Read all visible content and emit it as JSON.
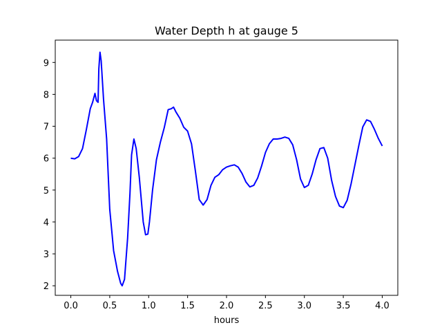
{
  "chart_data": {
    "type": "line",
    "title": "Water Depth h at gauge 5",
    "xlabel": "hours",
    "ylabel": "",
    "xlim": [
      -0.2,
      4.2
    ],
    "ylim": [
      1.7,
      9.7
    ],
    "xticks": [
      0.0,
      0.5,
      1.0,
      1.5,
      2.0,
      2.5,
      3.0,
      3.5,
      4.0
    ],
    "xtick_labels": [
      "0.0",
      "0.5",
      "1.0",
      "1.5",
      "2.0",
      "2.5",
      "3.0",
      "3.5",
      "4.0"
    ],
    "yticks": [
      2,
      3,
      4,
      5,
      6,
      7,
      8,
      9
    ],
    "ytick_labels": [
      "2",
      "3",
      "4",
      "5",
      "6",
      "7",
      "8",
      "9"
    ],
    "grid": false,
    "series": [
      {
        "color": "#0000ff",
        "points": [
          [
            0.0,
            6.0
          ],
          [
            0.05,
            5.98
          ],
          [
            0.1,
            6.05
          ],
          [
            0.15,
            6.3
          ],
          [
            0.2,
            6.9
          ],
          [
            0.25,
            7.55
          ],
          [
            0.28,
            7.75
          ],
          [
            0.31,
            8.03
          ],
          [
            0.33,
            7.8
          ],
          [
            0.35,
            7.75
          ],
          [
            0.36,
            8.8
          ],
          [
            0.375,
            9.32
          ],
          [
            0.39,
            9.05
          ],
          [
            0.42,
            7.85
          ],
          [
            0.46,
            6.6
          ],
          [
            0.5,
            4.4
          ],
          [
            0.55,
            3.1
          ],
          [
            0.6,
            2.45
          ],
          [
            0.64,
            2.08
          ],
          [
            0.66,
            2.0
          ],
          [
            0.69,
            2.2
          ],
          [
            0.73,
            3.5
          ],
          [
            0.76,
            4.9
          ],
          [
            0.78,
            6.1
          ],
          [
            0.81,
            6.6
          ],
          [
            0.84,
            6.3
          ],
          [
            0.88,
            5.4
          ],
          [
            0.93,
            4.0
          ],
          [
            0.96,
            3.6
          ],
          [
            0.99,
            3.62
          ],
          [
            1.01,
            4.0
          ],
          [
            1.05,
            5.0
          ],
          [
            1.1,
            5.95
          ],
          [
            1.15,
            6.5
          ],
          [
            1.2,
            6.95
          ],
          [
            1.25,
            7.52
          ],
          [
            1.29,
            7.55
          ],
          [
            1.32,
            7.6
          ],
          [
            1.35,
            7.45
          ],
          [
            1.4,
            7.25
          ],
          [
            1.45,
            6.97
          ],
          [
            1.5,
            6.85
          ],
          [
            1.55,
            6.45
          ],
          [
            1.6,
            5.6
          ],
          [
            1.65,
            4.7
          ],
          [
            1.7,
            4.53
          ],
          [
            1.75,
            4.7
          ],
          [
            1.8,
            5.15
          ],
          [
            1.85,
            5.4
          ],
          [
            1.9,
            5.48
          ],
          [
            1.95,
            5.64
          ],
          [
            2.0,
            5.72
          ],
          [
            2.05,
            5.76
          ],
          [
            2.1,
            5.79
          ],
          [
            2.15,
            5.72
          ],
          [
            2.2,
            5.52
          ],
          [
            2.25,
            5.25
          ],
          [
            2.3,
            5.1
          ],
          [
            2.35,
            5.15
          ],
          [
            2.4,
            5.38
          ],
          [
            2.45,
            5.75
          ],
          [
            2.5,
            6.18
          ],
          [
            2.55,
            6.45
          ],
          [
            2.6,
            6.6
          ],
          [
            2.65,
            6.6
          ],
          [
            2.7,
            6.62
          ],
          [
            2.75,
            6.66
          ],
          [
            2.8,
            6.62
          ],
          [
            2.85,
            6.42
          ],
          [
            2.9,
            5.95
          ],
          [
            2.95,
            5.35
          ],
          [
            3.0,
            5.08
          ],
          [
            3.05,
            5.15
          ],
          [
            3.1,
            5.5
          ],
          [
            3.15,
            5.95
          ],
          [
            3.2,
            6.3
          ],
          [
            3.25,
            6.33
          ],
          [
            3.3,
            6.0
          ],
          [
            3.35,
            5.3
          ],
          [
            3.4,
            4.8
          ],
          [
            3.45,
            4.5
          ],
          [
            3.5,
            4.45
          ],
          [
            3.55,
            4.68
          ],
          [
            3.6,
            5.2
          ],
          [
            3.65,
            5.8
          ],
          [
            3.7,
            6.4
          ],
          [
            3.75,
            6.98
          ],
          [
            3.8,
            7.2
          ],
          [
            3.85,
            7.15
          ],
          [
            3.9,
            6.9
          ],
          [
            3.95,
            6.62
          ],
          [
            4.0,
            6.38
          ]
        ]
      }
    ]
  }
}
